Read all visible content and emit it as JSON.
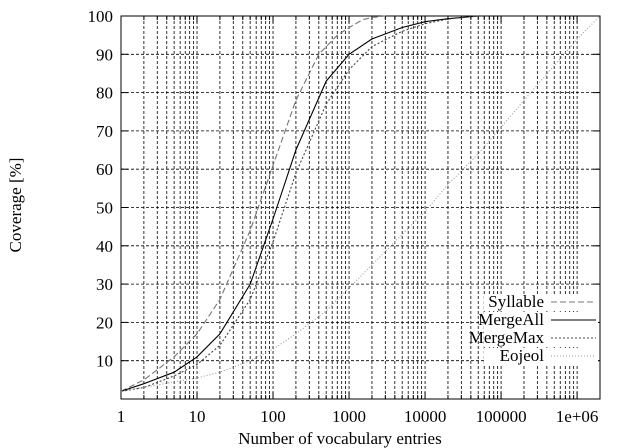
{
  "chart_data": {
    "type": "line",
    "xlabel": "Number of vocabulary entries",
    "ylabel": "Coverage [%]",
    "x_scale": "log",
    "xlim": [
      1,
      2000000
    ],
    "ylim": [
      0,
      100
    ],
    "x_ticks": [
      {
        "value": 1,
        "label": "1"
      },
      {
        "value": 10,
        "label": "10"
      },
      {
        "value": 100,
        "label": "100"
      },
      {
        "value": 1000,
        "label": "1000"
      },
      {
        "value": 10000,
        "label": "10000"
      },
      {
        "value": 100000,
        "label": "100000"
      },
      {
        "value": 1000000,
        "label": "1e+06"
      }
    ],
    "y_ticks": [
      10,
      20,
      30,
      40,
      50,
      60,
      70,
      80,
      90,
      100
    ],
    "grid": true,
    "legend_position": "bottom-right",
    "series": [
      {
        "name": "Syllable",
        "color": "#777777",
        "dash": "6,3",
        "x": [
          1,
          2,
          5,
          10,
          20,
          50,
          100,
          200,
          400,
          700,
          1000,
          1500,
          2000,
          3000
        ],
        "y": [
          2,
          5,
          11,
          17,
          26,
          44,
          61,
          78,
          90,
          95,
          97,
          99,
          99.6,
          100
        ]
      },
      {
        "name": "MergeAll",
        "color": "#000000",
        "dash": "",
        "x": [
          1,
          2,
          5,
          10,
          20,
          50,
          100,
          200,
          500,
          1000,
          2000,
          5000,
          10000,
          20000,
          50000
        ],
        "y": [
          2,
          4,
          7,
          11,
          17,
          30,
          47,
          65,
          83,
          90,
          94,
          97,
          98.5,
          99.3,
          100
        ]
      },
      {
        "name": "MergeMax",
        "color": "#444444",
        "dash": "2,2",
        "x": [
          1,
          2,
          5,
          10,
          20,
          50,
          100,
          200,
          500,
          1000,
          2000,
          5000,
          10000,
          20000,
          50000
        ],
        "y": [
          2,
          3,
          6,
          9,
          14,
          26,
          41,
          59,
          77,
          86,
          92,
          96,
          98,
          99.2,
          100
        ]
      },
      {
        "name": "Eojeol",
        "color": "#999999",
        "dash": "1,2",
        "x": [
          1,
          2,
          5,
          10,
          20,
          50,
          100,
          200,
          500,
          1000,
          2000,
          5000,
          10000,
          20000,
          50000,
          100000,
          200000,
          500000,
          1000000,
          2000000
        ],
        "y": [
          2,
          3,
          4.5,
          5.5,
          7,
          10,
          13,
          17,
          23,
          29,
          35,
          43,
          49,
          56,
          64,
          71,
          78,
          87,
          94,
          100
        ]
      }
    ]
  }
}
